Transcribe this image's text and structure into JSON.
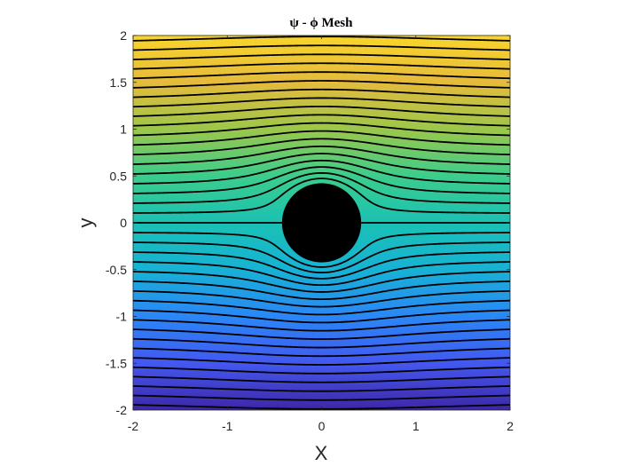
{
  "chart_data": {
    "type": "contour",
    "title": "ψ - ϕ Mesh",
    "xlabel": "X",
    "ylabel": "y",
    "xlim": [
      -2,
      2
    ],
    "ylim": [
      -2,
      2
    ],
    "x_ticks": [
      -2,
      -1,
      0,
      1,
      2
    ],
    "x_tick_labels": [
      "-2",
      "-1",
      "0",
      "1",
      "2"
    ],
    "y_ticks": [
      -2,
      -1.5,
      -1,
      -0.5,
      0,
      0.5,
      1,
      1.5,
      2
    ],
    "y_tick_labels": [
      "-2",
      "-1.5",
      "-1",
      "-0.5",
      "0",
      "0.5",
      "1",
      "1.5",
      "2"
    ],
    "field": "stream function psi = y * (1 - R^2 / (x^2 + y^2)), uniform flow past a cylinder",
    "cylinder_radius": 0.42,
    "cylinder_center": [
      0,
      0
    ],
    "contour_spacing": 0.1,
    "contour_count_per_side": 20,
    "colormap": [
      "#3e26a8",
      "#4358f0",
      "#2a87f7",
      "#17b2d5",
      "#1ac1b4",
      "#3ccd8c",
      "#9cc74a",
      "#e5bb3b",
      "#f9d52b"
    ]
  },
  "colors": {
    "line": "#000000",
    "cylinder": "#000000",
    "axis": "#262626",
    "background": "#ffffff"
  }
}
